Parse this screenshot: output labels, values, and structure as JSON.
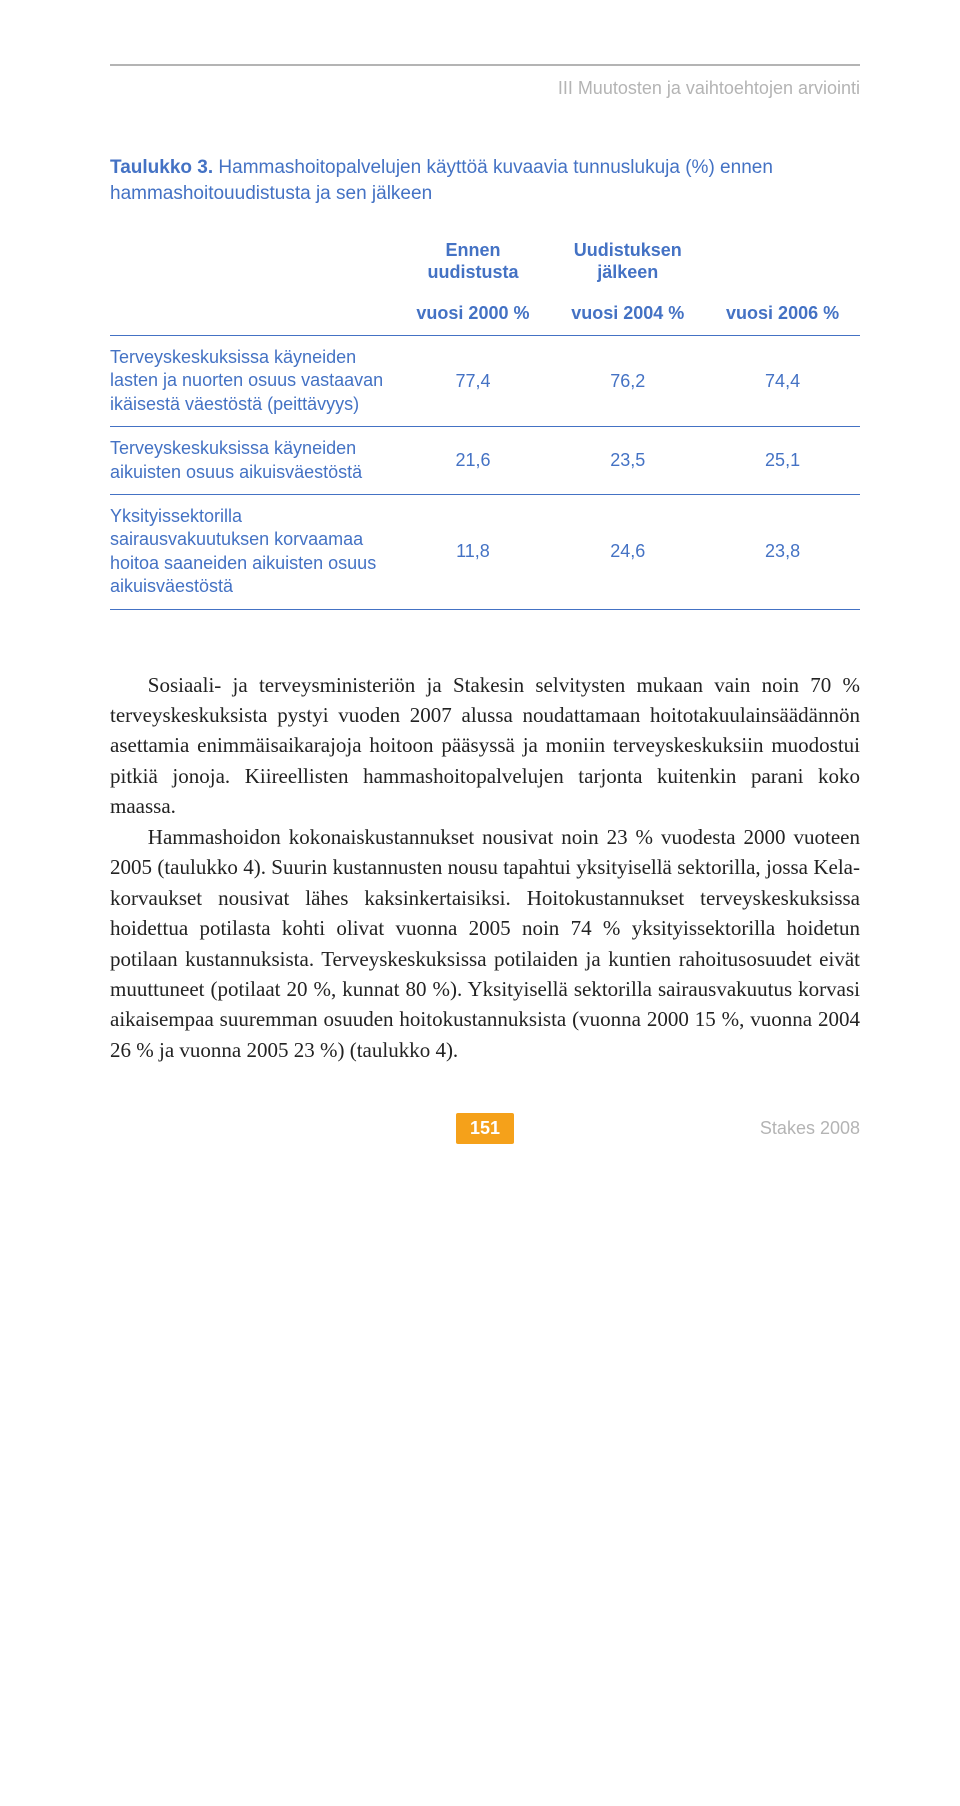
{
  "running_head": "III  Muutosten ja vaihtoehtojen arviointi",
  "table": {
    "caption_num": "Taulukko 3.",
    "caption_text": "Hammashoitopalvelujen käyttöä kuvaavia tunnuslukuja (%) ennen hammashoitouudistusta ja sen jälkeen",
    "header_top": [
      "",
      "Ennen uudistusta",
      "Uudistuksen jälkeen",
      ""
    ],
    "header_sub": [
      "",
      "vuosi 2000 %",
      "vuosi 2004 %",
      "vuosi 2006 %"
    ],
    "rows": [
      {
        "label": "Terveyskeskuksissa käyneiden lasten ja nuorten osuus vastaavan ikäisestä väestöstä (peittävyys)",
        "values": [
          "77,4",
          "76,2",
          "74,4"
        ]
      },
      {
        "label": "Terveyskeskuksissa käyneiden aikuisten osuus aikuisväestöstä",
        "values": [
          "21,6",
          "23,5",
          "25,1"
        ]
      },
      {
        "label": "Yksityissektorilla sairausvakuutuksen korvaamaa hoitoa saaneiden aikuisten osuus aikuisväestöstä",
        "values": [
          "11,8",
          "24,6",
          "23,8"
        ]
      }
    ],
    "col_widths": [
      "38%",
      "20.6%",
      "20.6%",
      "20.6%"
    ],
    "border_color": "#4472c4",
    "text_color": "#4472c4"
  },
  "paragraphs": [
    "Sosiaali- ja terveysministeriön ja Stakesin selvitysten mukaan vain noin 70 % terveyskeskuksista pystyi vuoden 2007 alussa noudattamaan hoitotakuulainsäädännön asettamia enimmäisaikarajoja hoitoon pääsyssä ja moniin terveyskeskuksiin muodostui pitkiä jonoja. Kiireellisten hammashoitopalvelujen tarjonta kuitenkin parani koko maassa.",
    "Hammashoidon kokonaiskustannukset nousivat noin 23 % vuodesta 2000 vuoteen 2005 (taulukko 4). Suurin kustannusten nousu tapahtui yksityisellä sektorilla, jossa Kela-korvaukset nousivat lähes kaksinkertaisiksi. Hoitokustannukset terveyskeskuksissa hoidettua potilasta kohti olivat vuonna 2005 noin 74 % yksityissektorilla hoidetun potilaan kustannuksista. Terveyskeskuksissa potilaiden ja kuntien rahoitusosuudet eivät muuttuneet (potilaat 20 %, kunnat 80 %). Yksityisellä sektorilla sairausvakuutus korvasi aikaisempaa suuremman osuuden hoitokustannuksista (vuonna 2000 15 %, vuonna 2004 26 % ja vuonna 2005 23 %) (taulukko 4)."
  ],
  "footer": {
    "page": "151",
    "publisher": "Stakes 2008"
  },
  "colors": {
    "accent_blue": "#4472c4",
    "grey": "#b4b4b4",
    "page_bg": "#ffffff",
    "badge_bg": "#f5a11a",
    "badge_fg": "#ffffff",
    "body_text": "#222222"
  }
}
